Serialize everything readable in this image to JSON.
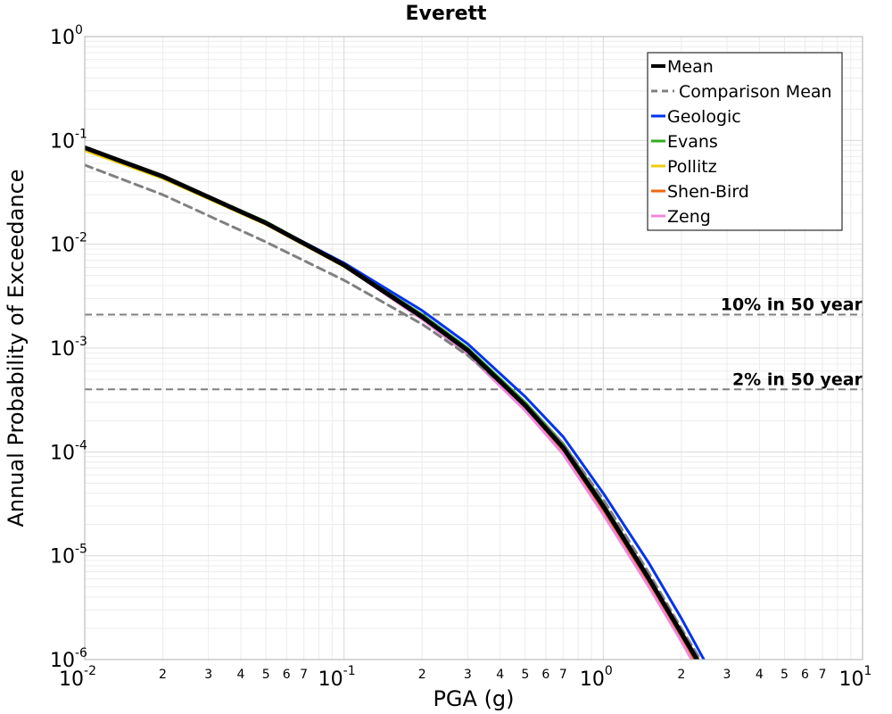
{
  "chart_data": {
    "type": "line",
    "title": "Everett",
    "xlabel": "PGA (g)",
    "ylabel": "Annual Probability of Exceedance",
    "xscale": "log",
    "yscale": "log",
    "xlim": [
      0.01,
      10
    ],
    "ylim": [
      1e-06,
      1
    ],
    "grid": true,
    "legend_position": "top-right",
    "x_major_ticks": [
      {
        "base": "10",
        "exp": "-2"
      },
      {
        "base": "10",
        "exp": "-1"
      },
      {
        "base": "10",
        "exp": "0"
      },
      {
        "base": "10",
        "exp": "1"
      }
    ],
    "y_major_ticks": [
      {
        "base": "10",
        "exp": "0"
      },
      {
        "base": "10",
        "exp": "-1"
      },
      {
        "base": "10",
        "exp": "-2"
      },
      {
        "base": "10",
        "exp": "-3"
      },
      {
        "base": "10",
        "exp": "-4"
      },
      {
        "base": "10",
        "exp": "-5"
      },
      {
        "base": "10",
        "exp": "-6"
      }
    ],
    "x_minor_labels": [
      "2",
      "3",
      "4",
      "5",
      "6",
      "7"
    ],
    "reference_lines": [
      {
        "label": "10% in 50 year",
        "y": 0.0021
      },
      {
        "label": "2% in 50 year",
        "y": 0.0004
      }
    ],
    "series": [
      {
        "name": "Mean",
        "color": "#000000",
        "dash": "solid",
        "x": [
          0.01,
          0.02,
          0.05,
          0.1,
          0.2,
          0.3,
          0.5,
          0.7,
          1.0,
          1.5,
          2.0,
          2.5
        ],
        "y": [
          0.085,
          0.045,
          0.016,
          0.0063,
          0.002,
          0.00095,
          0.00028,
          0.00011,
          3e-05,
          6e-06,
          1.8e-06,
          7e-07
        ]
      },
      {
        "name": "Comparison Mean",
        "color": "#808080",
        "dash": "dashed",
        "x": [
          0.01,
          0.02,
          0.05,
          0.1,
          0.2,
          0.3,
          0.5,
          0.7,
          1.0,
          1.5,
          2.0,
          2.5
        ],
        "y": [
          0.058,
          0.03,
          0.0105,
          0.0045,
          0.0017,
          0.00085,
          0.00029,
          0.00012,
          3.5e-05,
          6.8e-06,
          2e-06,
          8e-07
        ]
      },
      {
        "name": "Geologic",
        "color": "#0033ee",
        "dash": "solid",
        "x": [
          0.01,
          0.02,
          0.05,
          0.1,
          0.2,
          0.3,
          0.5,
          0.7,
          1.0,
          1.5,
          2.0,
          2.5
        ],
        "y": [
          0.085,
          0.045,
          0.0162,
          0.0066,
          0.0023,
          0.0011,
          0.00034,
          0.00014,
          4e-05,
          8.5e-06,
          2.5e-06,
          9e-07
        ]
      },
      {
        "name": "Evans",
        "color": "#33aa22",
        "dash": "solid",
        "x": [
          0.01,
          0.02,
          0.05,
          0.1,
          0.2,
          0.3,
          0.5,
          0.7,
          1.0,
          1.5,
          2.0,
          2.5
        ],
        "y": [
          0.084,
          0.045,
          0.0165,
          0.0064,
          0.0021,
          0.001,
          0.0003,
          0.00012,
          3.2e-05,
          6.2e-06,
          1.8e-06,
          6.5e-07
        ]
      },
      {
        "name": "Pollitz",
        "color": "#eecc11",
        "dash": "solid",
        "x": [
          0.01,
          0.02,
          0.05,
          0.1,
          0.2,
          0.3,
          0.5,
          0.7,
          1.0,
          1.5,
          2.0,
          2.5
        ],
        "y": [
          0.08,
          0.043,
          0.0155,
          0.0061,
          0.002,
          0.00095,
          0.00028,
          0.00011,
          3e-05,
          6.2e-06,
          1.9e-06,
          7.5e-07
        ]
      },
      {
        "name": "Shen-Bird",
        "color": "#ee6611",
        "dash": "solid",
        "x": [
          0.01,
          0.02,
          0.05,
          0.1,
          0.2,
          0.3,
          0.5,
          0.7,
          1.0,
          1.5,
          2.0,
          2.5
        ],
        "y": [
          0.085,
          0.045,
          0.016,
          0.0062,
          0.0019,
          0.0009,
          0.00026,
          0.0001,
          2.7e-05,
          5.4e-06,
          1.6e-06,
          6e-07
        ]
      },
      {
        "name": "Zeng",
        "color": "#ee88dd",
        "dash": "solid",
        "x": [
          0.01,
          0.02,
          0.05,
          0.1,
          0.2,
          0.3,
          0.5,
          0.7,
          1.0,
          1.5,
          2.0,
          2.5
        ],
        "y": [
          0.085,
          0.045,
          0.016,
          0.0062,
          0.0019,
          0.00087,
          0.00025,
          9.5e-05,
          2.5e-05,
          5e-06,
          1.5e-06,
          5.5e-07
        ]
      }
    ]
  }
}
